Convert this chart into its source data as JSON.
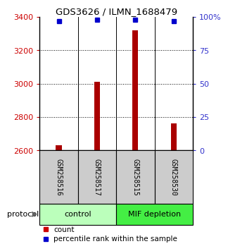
{
  "title": "GDS3626 / ILMN_1688479",
  "samples": [
    "GSM258516",
    "GSM258517",
    "GSM258515",
    "GSM258530"
  ],
  "counts": [
    2630,
    3010,
    3320,
    2760
  ],
  "percentile_ranks": [
    97,
    98,
    98,
    97
  ],
  "ylim_left": [
    2600,
    3400
  ],
  "yticks_left": [
    2600,
    2800,
    3000,
    3200,
    3400
  ],
  "ylim_right": [
    0,
    100
  ],
  "yticks_right": [
    0,
    25,
    50,
    75,
    100
  ],
  "grid_values": [
    2800,
    3000,
    3200
  ],
  "bar_color": "#aa0000",
  "dot_color": "#0000cc",
  "left_tick_color": "#cc0000",
  "right_tick_color": "#3333cc",
  "protocol_labels": [
    "control",
    "MIF depletion"
  ],
  "protocol_groups": [
    2,
    2
  ],
  "protocol_colors": [
    "#bbffbb",
    "#44ee44"
  ],
  "bg_color": "#ffffff",
  "sample_box_color": "#cccccc",
  "legend_count_color": "#cc0000",
  "legend_pct_color": "#0000cc",
  "bar_width": 0.15
}
